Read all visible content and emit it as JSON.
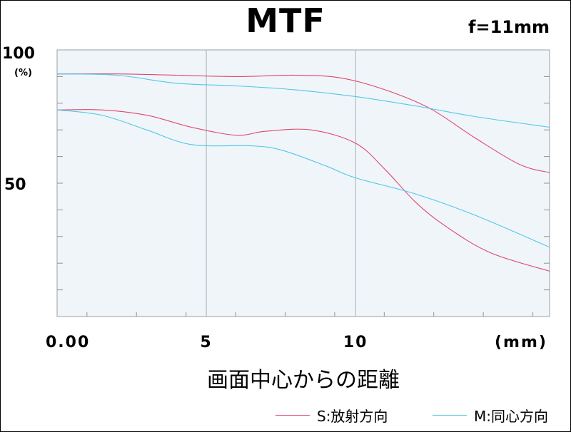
{
  "chart_data": {
    "type": "line",
    "title": "MTF",
    "subtitle": "f=11mm",
    "xlabel": "画面中心からの距離",
    "x_unit": "(mm)",
    "y_unit": "(%)",
    "xlim": [
      0,
      16.5
    ],
    "ylim": [
      0,
      100
    ],
    "x_ticks": [
      0,
      5,
      10
    ],
    "x_tick_labels": [
      "0.00",
      "5",
      "10"
    ],
    "y_ticks": [
      50,
      100
    ],
    "y_tick_labels": [
      "50",
      "100"
    ],
    "grid": "vertical lines at x=5 and x=10",
    "legend_position": "bottom-right",
    "colors": {
      "S": "#e0476b",
      "M": "#4fc8e6",
      "plot_bg": "#f0f5fa"
    },
    "series": [
      {
        "name": "S:放射方向",
        "color": "#e0476b",
        "x": [
          0,
          2,
          4,
          6,
          8,
          9.5,
          11,
          12.5,
          14,
          15.5,
          16.5
        ],
        "values": [
          91,
          91,
          90.5,
          90,
          90.5,
          89.5,
          85,
          78,
          67,
          57,
          54
        ]
      },
      {
        "name": "S:放射方向",
        "color": "#e0476b",
        "x": [
          0,
          1.5,
          3,
          4.5,
          6,
          7,
          8.5,
          10,
          11,
          12,
          13,
          14.5,
          16.5
        ],
        "values": [
          77.5,
          77.5,
          75.5,
          71,
          68,
          69.5,
          70,
          65,
          55,
          43,
          34,
          24,
          17
        ]
      },
      {
        "name": "M:同心方向",
        "color": "#4fc8e6",
        "x": [
          0,
          2,
          4,
          6,
          8,
          10,
          12,
          14,
          16.5
        ],
        "values": [
          91,
          90.5,
          87.5,
          86.5,
          85,
          82.5,
          79,
          75,
          71
        ]
      },
      {
        "name": "M:同心方向",
        "color": "#4fc8e6",
        "x": [
          0,
          1.5,
          3,
          4.5,
          6.5,
          7.5,
          9,
          10,
          12,
          14,
          16.5
        ],
        "values": [
          77.5,
          75.5,
          70,
          64.5,
          64,
          62.5,
          56.5,
          52,
          46,
          38,
          26
        ]
      }
    ],
    "legend": [
      {
        "label": "S:放射方向",
        "color": "#e0476b"
      },
      {
        "label": "M:同心方向",
        "color": "#4fc8e6"
      }
    ]
  }
}
